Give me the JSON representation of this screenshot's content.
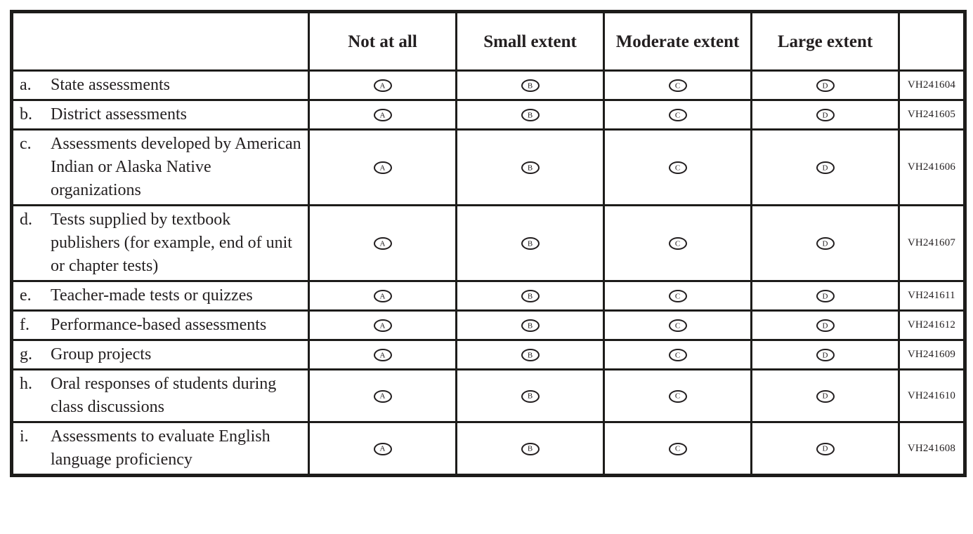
{
  "colors": {
    "ink": "#231f20",
    "border": "#1d1c1a",
    "background": "#ffffff"
  },
  "table": {
    "column_headers": [
      "Not at all",
      "Small extent",
      "Moderate extent",
      "Large extent"
    ],
    "options": [
      "A",
      "B",
      "C",
      "D"
    ],
    "rows": [
      {
        "letter": "a.",
        "text": "State assessments",
        "code": "VH241604"
      },
      {
        "letter": "b.",
        "text": "District assessments",
        "code": "VH241605"
      },
      {
        "letter": "c.",
        "text": "Assessments developed by American Indian or Alaska Native organizations",
        "code": "VH241606"
      },
      {
        "letter": "d.",
        "text": "Tests supplied by textbook publishers (for example, end of unit or chapter tests)",
        "code": "VH241607"
      },
      {
        "letter": "e.",
        "text": "Teacher-made tests or quizzes",
        "code": "VH241611"
      },
      {
        "letter": "f.",
        "text": "Performance-based assessments",
        "code": "VH241612"
      },
      {
        "letter": "g.",
        "text": "Group projects",
        "code": "VH241609"
      },
      {
        "letter": "h.",
        "text": "Oral responses of students during class discussions",
        "code": "VH241610"
      },
      {
        "letter": "i.",
        "text": "Assessments to evaluate English language proficiency",
        "code": "VH241608"
      }
    ]
  }
}
